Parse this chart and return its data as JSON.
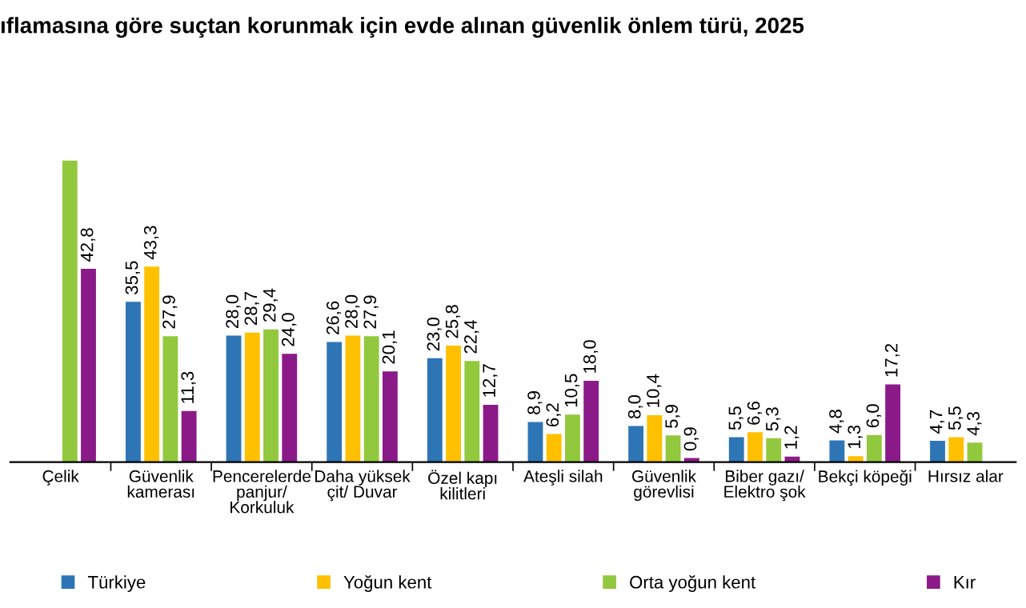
{
  "chart_data": {
    "type": "bar",
    "title": "ıflamasına göre suçtan korunmak için evde alınan güvenlik önlem türü, 2025",
    "categories": [
      "Çelik",
      "Güvenlik\nkamerası",
      "Pencerelerde\npanjur/\nKorkuluk",
      "Daha yüksek\nçit/ Duvar",
      "Özel kapı\nkilitleri",
      "Ateşli silah",
      "Güvenlik\ngörevlisi",
      "Biber gazı/\nElektro şok",
      "Bekçi köpeği",
      "Hırsız alar"
    ],
    "series": [
      {
        "name": "Türkiye",
        "color": "#2e75b6",
        "values": [
          null,
          35.5,
          28.0,
          26.6,
          23.0,
          8.9,
          8.0,
          5.5,
          4.8,
          4.7
        ],
        "value_labels": [
          null,
          "35,5",
          "28,0",
          "26,6",
          "23,0",
          "8,9",
          "8,0",
          "5,5",
          "4,8",
          "4,7"
        ]
      },
      {
        "name": "Yoğun kent",
        "color": "#ffc000",
        "values": [
          null,
          43.3,
          28.7,
          28.0,
          25.8,
          6.2,
          10.4,
          6.6,
          1.3,
          5.5
        ],
        "value_labels": [
          null,
          "43,3",
          "28,7",
          "28,0",
          "25,8",
          "6,2",
          "10,4",
          "6,6",
          "1,3",
          "5,5"
        ]
      },
      {
        "name": "Orta yoğun kent",
        "color": "#92c83e",
        "values": [
          66.8,
          27.9,
          29.4,
          27.9,
          22.4,
          10.5,
          5.9,
          5.3,
          6.0,
          4.3
        ],
        "value_labels": [
          null,
          "27,9",
          "29,4",
          "27,9",
          "22,4",
          "10,5",
          "5,9",
          "5,3",
          "6,0",
          "4,3"
        ]
      },
      {
        "name": "Kır",
        "color": "#8b1a89",
        "values": [
          42.8,
          11.3,
          24.0,
          20.1,
          12.7,
          18.0,
          0.9,
          1.2,
          17.2,
          null
        ],
        "value_labels": [
          "42,8",
          "11,3",
          "24,0",
          "20,1",
          "12,7",
          "18,0",
          "0,9",
          "1,2",
          "17,2",
          null
        ]
      }
    ],
    "legend": "bottom",
    "grid": false
  }
}
